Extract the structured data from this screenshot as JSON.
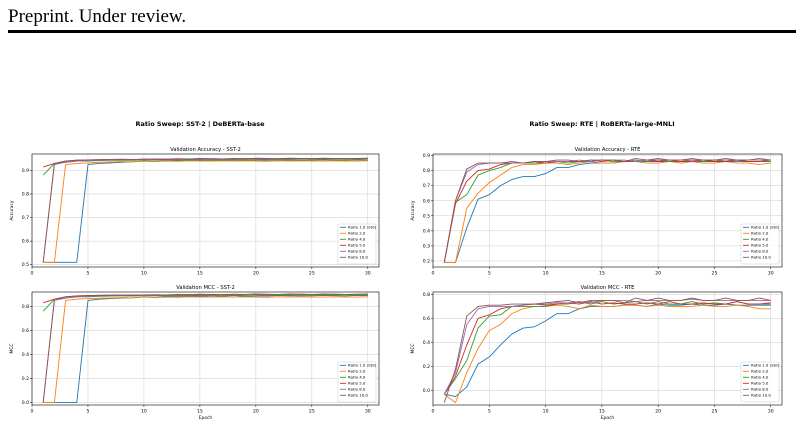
{
  "page": {
    "header": "Preprint. Under review."
  },
  "colors": {
    "series": [
      "#1f77b4",
      "#ff7f0e",
      "#2ca02c",
      "#d62728",
      "#9467bd",
      "#8c564b"
    ],
    "grid": "#cccccc",
    "axis": "#000000"
  },
  "chart_data": [
    {
      "type": "line",
      "suptitle": "Ratio Sweep: SST-2 | DeBERTa-base",
      "title": "Validation Accuracy - SST-2",
      "xlabel": "",
      "ylabel": "Accuracy",
      "xlim": [
        0,
        31
      ],
      "ylim": [
        0.49,
        0.97
      ],
      "xticks": [
        0,
        5,
        10,
        15,
        20,
        25,
        30
      ],
      "yticks": [
        0.5,
        0.6,
        0.7,
        0.8,
        0.9
      ],
      "ytick_labels": [
        "0.5",
        "0.6",
        "0.7",
        "0.8",
        "0.9"
      ],
      "grid": true,
      "legend": "lower right",
      "x": [
        1,
        2,
        3,
        4,
        5,
        6,
        7,
        8,
        9,
        10,
        11,
        12,
        13,
        14,
        15,
        16,
        17,
        18,
        19,
        20,
        21,
        22,
        23,
        24,
        25,
        26,
        27,
        28,
        29,
        30
      ],
      "series": [
        {
          "name": "Ratio 1.0 (Std)",
          "values": [
            0.51,
            0.51,
            0.51,
            0.51,
            0.925,
            0.93,
            0.932,
            0.935,
            0.937,
            0.94,
            0.938,
            0.942,
            0.94,
            0.943,
            0.942,
            0.944,
            0.943,
            0.945,
            0.942,
            0.944,
            0.943,
            0.946,
            0.944,
            0.945,
            0.944,
            0.946,
            0.945,
            0.944,
            0.946,
            0.945
          ]
        },
        {
          "name": "Ratio 2.0",
          "values": [
            0.51,
            0.51,
            0.925,
            0.93,
            0.932,
            0.935,
            0.936,
            0.938,
            0.937,
            0.94,
            0.938,
            0.94,
            0.939,
            0.941,
            0.94,
            0.94,
            0.941,
            0.94,
            0.941,
            0.94,
            0.939,
            0.941,
            0.94,
            0.941,
            0.94,
            0.94,
            0.941,
            0.94,
            0.94,
            0.941
          ]
        },
        {
          "name": "Ratio 4.0",
          "values": [
            0.88,
            0.93,
            0.935,
            0.94,
            0.94,
            0.942,
            0.943,
            0.944,
            0.943,
            0.945,
            0.944,
            0.946,
            0.944,
            0.945,
            0.946,
            0.945,
            0.944,
            0.946,
            0.945,
            0.944,
            0.946,
            0.945,
            0.946,
            0.944,
            0.945,
            0.946,
            0.945,
            0.944,
            0.946,
            0.945
          ]
        },
        {
          "name": "Ratio 5.0",
          "values": [
            0.915,
            0.93,
            0.94,
            0.943,
            0.945,
            0.946,
            0.946,
            0.947,
            0.946,
            0.948,
            0.947,
            0.948,
            0.947,
            0.949,
            0.948,
            0.95,
            0.949,
            0.948,
            0.95,
            0.949,
            0.948,
            0.95,
            0.949,
            0.951,
            0.95,
            0.949,
            0.951,
            0.95,
            0.949,
            0.951
          ]
        },
        {
          "name": "Ratio 8.0",
          "values": [
            0.51,
            0.925,
            0.935,
            0.94,
            0.942,
            0.944,
            0.945,
            0.946,
            0.947,
            0.946,
            0.947,
            0.948,
            0.947,
            0.949,
            0.948,
            0.947,
            0.949,
            0.948,
            0.95,
            0.949,
            0.948,
            0.95,
            0.949,
            0.95,
            0.949,
            0.95,
            0.949,
            0.95,
            0.949,
            0.95
          ]
        },
        {
          "name": "Ratio 10.0",
          "values": [
            0.51,
            0.93,
            0.94,
            0.944,
            0.945,
            0.946,
            0.947,
            0.948,
            0.947,
            0.948,
            0.949,
            0.948,
            0.95,
            0.949,
            0.951,
            0.95,
            0.949,
            0.951,
            0.95,
            0.952,
            0.951,
            0.95,
            0.952,
            0.951,
            0.95,
            0.952,
            0.951,
            0.95,
            0.951,
            0.952
          ]
        }
      ]
    },
    {
      "type": "line",
      "title": "Validation MCC - SST-2",
      "xlabel": "Epoch",
      "ylabel": "MCC",
      "xlim": [
        0,
        31
      ],
      "ylim": [
        -0.02,
        0.92
      ],
      "xticks": [
        0,
        5,
        10,
        15,
        20,
        25,
        30
      ],
      "yticks": [
        0,
        0.2,
        0.4,
        0.6,
        0.8
      ],
      "ytick_labels": [
        "0.0",
        "0.2",
        "0.4",
        "0.6",
        "0.8"
      ],
      "grid": true,
      "legend": "lower right",
      "x": [
        1,
        2,
        3,
        4,
        5,
        6,
        7,
        8,
        9,
        10,
        11,
        12,
        13,
        14,
        15,
        16,
        17,
        18,
        19,
        20,
        21,
        22,
        23,
        24,
        25,
        26,
        27,
        28,
        29,
        30
      ],
      "series": [
        {
          "name": "Ratio 1.0 (Std)",
          "values": [
            0,
            0,
            0,
            0,
            0.85,
            0.86,
            0.865,
            0.87,
            0.872,
            0.88,
            0.875,
            0.885,
            0.88,
            0.885,
            0.882,
            0.888,
            0.885,
            0.89,
            0.884,
            0.888,
            0.886,
            0.892,
            0.888,
            0.89,
            0.888,
            0.892,
            0.89,
            0.888,
            0.892,
            0.89
          ]
        },
        {
          "name": "Ratio 2.0",
          "values": [
            0,
            0,
            0.85,
            0.86,
            0.864,
            0.868,
            0.87,
            0.874,
            0.872,
            0.878,
            0.874,
            0.878,
            0.876,
            0.88,
            0.878,
            0.878,
            0.88,
            0.878,
            0.88,
            0.878,
            0.876,
            0.88,
            0.878,
            0.88,
            0.878,
            0.878,
            0.88,
            0.878,
            0.878,
            0.88
          ]
        },
        {
          "name": "Ratio 4.0",
          "values": [
            0.76,
            0.86,
            0.87,
            0.88,
            0.88,
            0.884,
            0.886,
            0.888,
            0.886,
            0.89,
            0.888,
            0.892,
            0.888,
            0.89,
            0.892,
            0.89,
            0.888,
            0.892,
            0.89,
            0.888,
            0.892,
            0.89,
            0.892,
            0.888,
            0.89,
            0.892,
            0.89,
            0.888,
            0.892,
            0.89
          ]
        },
        {
          "name": "Ratio 5.0",
          "values": [
            0.83,
            0.86,
            0.88,
            0.886,
            0.89,
            0.892,
            0.892,
            0.894,
            0.892,
            0.896,
            0.894,
            0.896,
            0.894,
            0.898,
            0.896,
            0.9,
            0.898,
            0.896,
            0.9,
            0.898,
            0.896,
            0.9,
            0.898,
            0.902,
            0.9,
            0.898,
            0.902,
            0.9,
            0.898,
            0.902
          ]
        },
        {
          "name": "Ratio 8.0",
          "values": [
            0,
            0.85,
            0.87,
            0.88,
            0.884,
            0.888,
            0.89,
            0.892,
            0.894,
            0.892,
            0.894,
            0.896,
            0.894,
            0.898,
            0.896,
            0.894,
            0.898,
            0.896,
            0.9,
            0.898,
            0.896,
            0.9,
            0.898,
            0.9,
            0.898,
            0.9,
            0.898,
            0.9,
            0.898,
            0.9
          ]
        },
        {
          "name": "Ratio 10.0",
          "values": [
            0,
            0.86,
            0.88,
            0.888,
            0.89,
            0.892,
            0.894,
            0.896,
            0.894,
            0.896,
            0.898,
            0.896,
            0.9,
            0.898,
            0.902,
            0.9,
            0.898,
            0.902,
            0.9,
            0.904,
            0.902,
            0.9,
            0.904,
            0.902,
            0.9,
            0.904,
            0.902,
            0.9,
            0.902,
            0.904
          ]
        }
      ]
    },
    {
      "type": "line",
      "suptitle": "Ratio Sweep: RTE | RoBERTa-large-MNLI",
      "title": "Validation Accuracy - RTE",
      "xlabel": "",
      "ylabel": "Accuracy",
      "xlim": [
        0,
        31
      ],
      "ylim": [
        0.16,
        0.91
      ],
      "xticks": [
        0,
        5,
        10,
        15,
        20,
        25,
        30
      ],
      "yticks": [
        0.2,
        0.3,
        0.4,
        0.5,
        0.6,
        0.7,
        0.8,
        0.9
      ],
      "ytick_labels": [
        "0.2",
        "0.3",
        "0.4",
        "0.5",
        "0.6",
        "0.7",
        "0.8",
        "0.9"
      ],
      "grid": true,
      "legend": "lower right",
      "x": [
        1,
        2,
        3,
        4,
        5,
        6,
        7,
        8,
        9,
        10,
        11,
        12,
        13,
        14,
        15,
        16,
        17,
        18,
        19,
        20,
        21,
        22,
        23,
        24,
        25,
        26,
        27,
        28,
        29,
        30
      ],
      "series": [
        {
          "name": "Ratio 1.0 (Std)",
          "values": [
            0.19,
            0.19,
            0.42,
            0.61,
            0.64,
            0.7,
            0.74,
            0.76,
            0.76,
            0.78,
            0.82,
            0.82,
            0.84,
            0.85,
            0.85,
            0.85,
            0.86,
            0.86,
            0.86,
            0.86,
            0.86,
            0.86,
            0.86,
            0.86,
            0.86,
            0.86,
            0.86,
            0.86,
            0.86,
            0.86
          ]
        },
        {
          "name": "Ratio 2.0",
          "values": [
            0.19,
            0.19,
            0.55,
            0.65,
            0.72,
            0.77,
            0.82,
            0.84,
            0.84,
            0.85,
            0.85,
            0.84,
            0.85,
            0.86,
            0.85,
            0.85,
            0.86,
            0.86,
            0.85,
            0.85,
            0.86,
            0.85,
            0.86,
            0.85,
            0.85,
            0.86,
            0.85,
            0.85,
            0.84,
            0.85
          ]
        },
        {
          "name": "Ratio 4.0",
          "values": [
            0.19,
            0.59,
            0.64,
            0.77,
            0.8,
            0.82,
            0.85,
            0.85,
            0.85,
            0.85,
            0.86,
            0.85,
            0.86,
            0.86,
            0.87,
            0.86,
            0.86,
            0.87,
            0.86,
            0.87,
            0.86,
            0.86,
            0.87,
            0.86,
            0.87,
            0.86,
            0.87,
            0.86,
            0.86,
            0.86
          ]
        },
        {
          "name": "Ratio 5.0",
          "values": [
            0.19,
            0.58,
            0.73,
            0.8,
            0.81,
            0.84,
            0.85,
            0.85,
            0.86,
            0.85,
            0.86,
            0.86,
            0.86,
            0.87,
            0.86,
            0.87,
            0.86,
            0.86,
            0.87,
            0.86,
            0.87,
            0.86,
            0.86,
            0.87,
            0.86,
            0.86,
            0.87,
            0.86,
            0.86,
            0.87
          ]
        },
        {
          "name": "Ratio 8.0",
          "values": [
            0.19,
            0.6,
            0.79,
            0.84,
            0.85,
            0.85,
            0.85,
            0.85,
            0.86,
            0.86,
            0.86,
            0.86,
            0.87,
            0.86,
            0.87,
            0.87,
            0.87,
            0.86,
            0.87,
            0.87,
            0.87,
            0.87,
            0.87,
            0.87,
            0.87,
            0.87,
            0.87,
            0.87,
            0.87,
            0.87
          ]
        },
        {
          "name": "Ratio 10.0",
          "values": [
            0.19,
            0.6,
            0.81,
            0.85,
            0.85,
            0.85,
            0.86,
            0.85,
            0.86,
            0.86,
            0.87,
            0.87,
            0.86,
            0.87,
            0.87,
            0.87,
            0.86,
            0.88,
            0.87,
            0.88,
            0.87,
            0.87,
            0.88,
            0.87,
            0.87,
            0.88,
            0.87,
            0.87,
            0.88,
            0.87
          ]
        }
      ]
    },
    {
      "type": "line",
      "title": "Validation MCC - RTE",
      "xlabel": "Epoch",
      "ylabel": "MCC",
      "xlim": [
        0,
        31
      ],
      "ylim": [
        -0.12,
        0.82
      ],
      "xticks": [
        0,
        5,
        10,
        15,
        20,
        25,
        30
      ],
      "yticks": [
        0,
        0.2,
        0.4,
        0.6,
        0.8
      ],
      "ytick_labels": [
        "0.0",
        "0.2",
        "0.4",
        "0.6",
        "0.8"
      ],
      "grid": true,
      "legend": "lower right",
      "x": [
        1,
        2,
        3,
        4,
        5,
        6,
        7,
        8,
        9,
        10,
        11,
        12,
        13,
        14,
        15,
        16,
        17,
        18,
        19,
        20,
        21,
        22,
        23,
        24,
        25,
        26,
        27,
        28,
        29,
        30
      ],
      "series": [
        {
          "name": "Ratio 1.0 (Std)",
          "values": [
            -0.03,
            -0.05,
            0.03,
            0.22,
            0.28,
            0.38,
            0.47,
            0.52,
            0.53,
            0.58,
            0.64,
            0.64,
            0.68,
            0.7,
            0.7,
            0.7,
            0.71,
            0.71,
            0.7,
            0.72,
            0.71,
            0.71,
            0.72,
            0.71,
            0.71,
            0.72,
            0.71,
            0.71,
            0.71,
            0.71
          ]
        },
        {
          "name": "Ratio 2.0",
          "values": [
            -0.03,
            -0.1,
            0.15,
            0.35,
            0.5,
            0.55,
            0.64,
            0.68,
            0.7,
            0.7,
            0.71,
            0.7,
            0.68,
            0.71,
            0.7,
            0.7,
            0.71,
            0.71,
            0.7,
            0.71,
            0.7,
            0.7,
            0.7,
            0.71,
            0.7,
            0.7,
            0.71,
            0.7,
            0.68,
            0.68
          ]
        },
        {
          "name": "Ratio 4.0",
          "values": [
            -0.03,
            0.1,
            0.25,
            0.52,
            0.62,
            0.63,
            0.7,
            0.7,
            0.7,
            0.7,
            0.72,
            0.72,
            0.74,
            0.72,
            0.74,
            0.72,
            0.73,
            0.74,
            0.72,
            0.74,
            0.72,
            0.72,
            0.74,
            0.72,
            0.73,
            0.72,
            0.74,
            0.72,
            0.72,
            0.72
          ]
        },
        {
          "name": "Ratio 5.0",
          "values": [
            -0.03,
            0.12,
            0.38,
            0.6,
            0.63,
            0.68,
            0.7,
            0.71,
            0.72,
            0.71,
            0.72,
            0.73,
            0.72,
            0.74,
            0.72,
            0.73,
            0.72,
            0.72,
            0.73,
            0.72,
            0.74,
            0.72,
            0.72,
            0.73,
            0.72,
            0.72,
            0.74,
            0.72,
            0.72,
            0.73
          ]
        },
        {
          "name": "Ratio 8.0",
          "values": [
            -0.03,
            0.15,
            0.55,
            0.68,
            0.7,
            0.7,
            0.7,
            0.71,
            0.72,
            0.72,
            0.73,
            0.73,
            0.74,
            0.73,
            0.75,
            0.75,
            0.75,
            0.74,
            0.75,
            0.75,
            0.75,
            0.75,
            0.76,
            0.75,
            0.75,
            0.75,
            0.75,
            0.75,
            0.75,
            0.75
          ]
        },
        {
          "name": "Ratio 10.0",
          "values": [
            -0.1,
            0.18,
            0.62,
            0.7,
            0.71,
            0.71,
            0.72,
            0.72,
            0.72,
            0.73,
            0.74,
            0.75,
            0.73,
            0.75,
            0.75,
            0.75,
            0.73,
            0.77,
            0.75,
            0.77,
            0.75,
            0.75,
            0.77,
            0.75,
            0.75,
            0.77,
            0.75,
            0.75,
            0.77,
            0.75
          ]
        }
      ]
    }
  ]
}
